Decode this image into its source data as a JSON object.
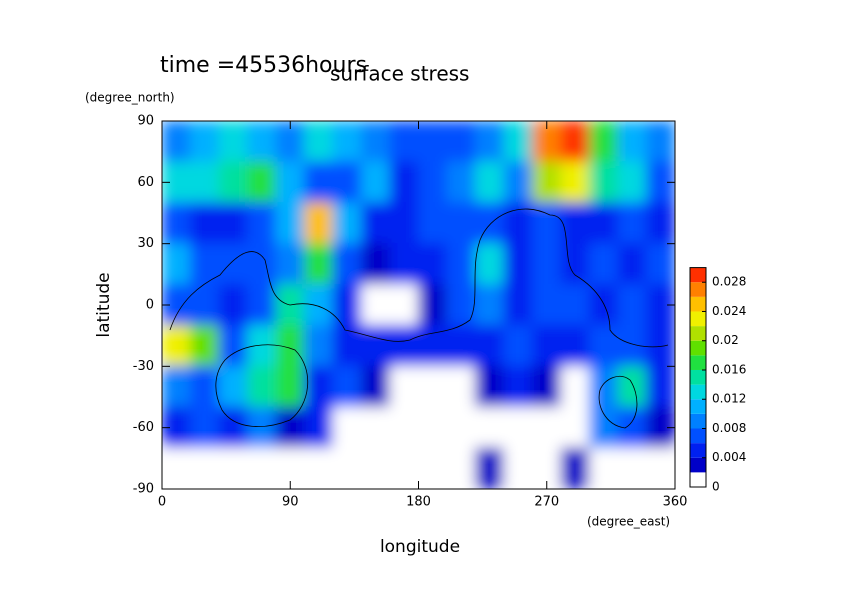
{
  "chart_data": {
    "type": "contour",
    "title": "time =45536hours",
    "subtitle": "surface stress",
    "x_label": "longitude",
    "x_unit": "(degree_east)",
    "y_label": "latitude",
    "y_unit": "(degree_north)",
    "xlim": [
      0,
      360
    ],
    "xticks": [
      0,
      90,
      180,
      270,
      360
    ],
    "ylim": [
      -90,
      90
    ],
    "yticks": [
      -90,
      -60,
      -30,
      0,
      30,
      60,
      90
    ],
    "x": [
      10,
      30,
      50,
      70,
      90,
      110,
      130,
      150,
      170,
      190,
      210,
      230,
      250,
      270,
      290,
      310,
      330,
      350
    ],
    "y": [
      80,
      60,
      40,
      20,
      0,
      -20,
      -40,
      -60,
      -80
    ],
    "z": [
      [
        0.008,
        0.01,
        0.012,
        0.01,
        0.008,
        0.012,
        0.01,
        0.008,
        0.006,
        0.006,
        0.006,
        0.008,
        0.012,
        0.026,
        0.028,
        0.016,
        0.01,
        0.008
      ],
      [
        0.012,
        0.012,
        0.014,
        0.016,
        0.01,
        0.006,
        0.006,
        0.01,
        0.004,
        0.006,
        0.008,
        0.012,
        0.008,
        0.02,
        0.022,
        0.014,
        0.012,
        0.006
      ],
      [
        0.006,
        0.004,
        0.004,
        0.006,
        0.01,
        0.024,
        0.01,
        0.004,
        0.004,
        0.006,
        0.006,
        0.006,
        0.004,
        0.006,
        0.004,
        0.004,
        0.006,
        0.004
      ],
      [
        0.01,
        0.006,
        0.006,
        0.006,
        0.008,
        0.016,
        0.006,
        0.002,
        0.004,
        0.004,
        0.006,
        0.012,
        0.004,
        0.006,
        0.004,
        0.006,
        0.004,
        0.006
      ],
      [
        0.006,
        0.006,
        0.004,
        0.006,
        0.014,
        0.01,
        0.004,
        0.001,
        0.001,
        0.002,
        0.006,
        0.008,
        0.004,
        0.006,
        0.006,
        0.004,
        0.006,
        0.004
      ],
      [
        0.022,
        0.018,
        0.006,
        0.012,
        0.016,
        0.008,
        0.004,
        0.004,
        0.004,
        0.004,
        0.004,
        0.004,
        0.006,
        0.004,
        0.004,
        0.006,
        0.006,
        0.004
      ],
      [
        0.008,
        0.006,
        0.01,
        0.014,
        0.016,
        0.004,
        0.006,
        0.002,
        0.001,
        0.001,
        0.001,
        0.002,
        0.004,
        0.002,
        0.001,
        0.008,
        0.014,
        0.004
      ],
      [
        0.004,
        0.006,
        0.004,
        0.008,
        0.002,
        0.004,
        0.001,
        0,
        0,
        0,
        0,
        0,
        0,
        0,
        0,
        0.008,
        0.006,
        0.002
      ],
      [
        0,
        0,
        0,
        0,
        0,
        0,
        0,
        0,
        0,
        0,
        0,
        0.002,
        0,
        0,
        0.002,
        0,
        0,
        0
      ]
    ],
    "clim": [
      0,
      0.03
    ],
    "levels": [
      0,
      0.002,
      0.004,
      0.006,
      0.008,
      0.01,
      0.012,
      0.014,
      0.016,
      0.018,
      0.02,
      0.022,
      0.024,
      0.026,
      0.028,
      0.03
    ],
    "colors": [
      "#ffffff",
      "#0000c8",
      "#0020f0",
      "#0050ff",
      "#0080ff",
      "#00b0ff",
      "#00d8e0",
      "#00e0a0",
      "#20e040",
      "#60e000",
      "#b0e000",
      "#f0f000",
      "#ffc000",
      "#ff8000",
      "#ff3000"
    ],
    "colorbar_ticks": [
      0,
      0.004,
      0.008,
      0.012,
      0.016,
      0.02,
      0.024,
      0.028
    ]
  }
}
